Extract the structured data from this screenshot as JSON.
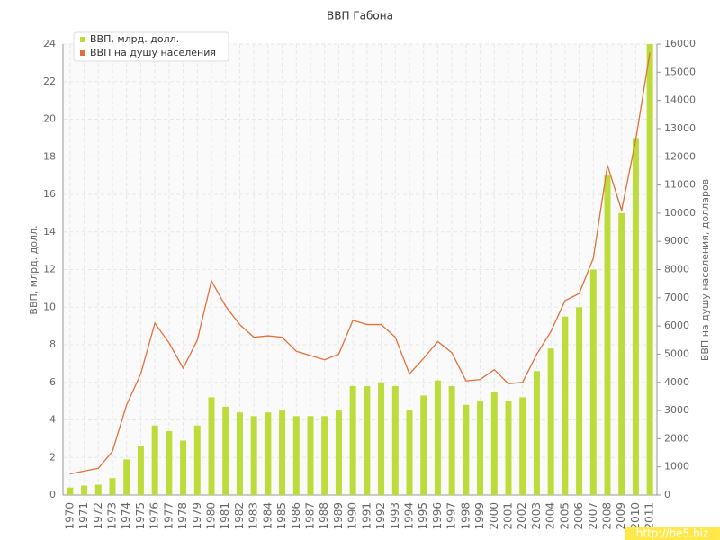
{
  "chart_data": {
    "type": "bar-line",
    "title": "ВВП Габона",
    "y_label": "ВВП, млрд. долл.",
    "y2_label": "ВВП на душу населения, долларов",
    "watermark": "http://be5.biz",
    "legend": "top-left",
    "grid": true,
    "categories": [
      "1970",
      "1971",
      "1972",
      "1973",
      "1974",
      "1975",
      "1976",
      "1977",
      "1978",
      "1979",
      "1980",
      "1981",
      "1982",
      "1983",
      "1984",
      "1985",
      "1986",
      "1987",
      "1988",
      "1989",
      "1990",
      "1991",
      "1992",
      "1993",
      "1994",
      "1995",
      "1996",
      "1997",
      "1998",
      "1999",
      "2000",
      "2001",
      "2002",
      "2003",
      "2004",
      "2005",
      "2006",
      "2007",
      "2008",
      "2009",
      "2010",
      "2011"
    ],
    "series": [
      {
        "name": "ВВП, млрд. долл.",
        "type": "bar",
        "color": "#bcdc3c",
        "values": [
          0.4,
          0.5,
          0.55,
          0.9,
          1.9,
          2.6,
          3.7,
          3.4,
          2.9,
          3.7,
          5.2,
          4.7,
          4.4,
          4.2,
          4.4,
          4.5,
          4.2,
          4.2,
          4.2,
          4.5,
          5.8,
          5.8,
          6.0,
          5.8,
          4.5,
          5.3,
          6.1,
          5.8,
          4.8,
          5.0,
          5.5,
          5.0,
          5.2,
          6.6,
          7.8,
          9.5,
          10.0,
          12.0,
          17.0,
          15.0,
          19.0,
          24.0
        ]
      },
      {
        "name": "ВВП на душу населения",
        "type": "line",
        "axis": "y2",
        "color": "#e0703c",
        "values": [
          750,
          850,
          950,
          1550,
          3200,
          4300,
          6100,
          5400,
          4500,
          5500,
          7600,
          6700,
          6050,
          5600,
          5650,
          5600,
          5100,
          4950,
          4800,
          5000,
          6200,
          6050,
          6050,
          5600,
          4300,
          4850,
          5450,
          5050,
          4050,
          4100,
          4450,
          3950,
          4000,
          5000,
          5800,
          6900,
          7150,
          8400,
          11700,
          10100,
          12600,
          15700
        ]
      }
    ],
    "ylim": [
      0,
      24
    ],
    "yticks": [
      0,
      2,
      4,
      6,
      8,
      10,
      12,
      14,
      16,
      18,
      20,
      22,
      24
    ],
    "y2lim": [
      0,
      16000
    ],
    "y2ticks": [
      0,
      1000,
      2000,
      3000,
      4000,
      5000,
      6000,
      7000,
      8000,
      9000,
      10000,
      11000,
      12000,
      13000,
      14000,
      15000,
      16000
    ]
  }
}
